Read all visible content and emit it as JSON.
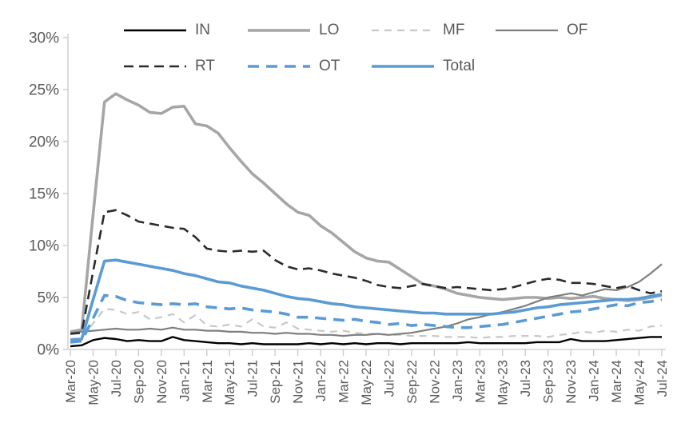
{
  "chart_data": {
    "type": "line",
    "title": "",
    "x_axis": {
      "frequency": "monthly",
      "start": "Mar-20",
      "end": "Jul-24",
      "num_points": 53,
      "tick_labels": [
        "Mar-20",
        "May-20",
        "Jul-20",
        "Sep-20",
        "Nov-20",
        "Jan-21",
        "Mar-21",
        "May-21",
        "Jul-21",
        "Sep-21",
        "Nov-21",
        "Jan-22",
        "Mar-22",
        "May-22",
        "Jul-22",
        "Sep-22",
        "Nov-22",
        "Jan-23",
        "Mar-23",
        "May-23",
        "Jul-23",
        "Sep-23",
        "Nov-23",
        "Jan-24",
        "Mar-24",
        "May-24",
        "Jul-24"
      ],
      "points_per_tick": 2
    },
    "y_axis": {
      "tick_labels": [
        "0%",
        "5%",
        "10%",
        "15%",
        "20%",
        "25%",
        "30%"
      ],
      "min": 0,
      "max": 30,
      "step": 5,
      "unit": "%"
    },
    "grid": false,
    "legend_position": "top",
    "legend_rows": [
      [
        "IN",
        "LO",
        "MF",
        "OF"
      ],
      [
        "RT",
        "OT",
        "Total"
      ]
    ],
    "colors": {
      "axis": "#C9C9C9",
      "label": "#595959",
      "background": "#FFFFFF",
      "accent_blue": "#5B9BD5"
    },
    "series": [
      {
        "name": "IN",
        "color": "#000000",
        "line_style": "solid",
        "stroke_width": 2.4,
        "dash": "",
        "values": [
          0.3,
          0.4,
          0.9,
          1.1,
          1.0,
          0.8,
          0.9,
          0.8,
          0.8,
          1.2,
          0.9,
          0.8,
          0.7,
          0.6,
          0.6,
          0.5,
          0.6,
          0.5,
          0.5,
          0.5,
          0.5,
          0.6,
          0.5,
          0.6,
          0.5,
          0.6,
          0.5,
          0.6,
          0.6,
          0.5,
          0.6,
          0.6,
          0.6,
          0.6,
          0.6,
          0.7,
          0.6,
          0.6,
          0.6,
          0.6,
          0.6,
          0.7,
          0.7,
          0.7,
          1.0,
          0.8,
          0.8,
          0.8,
          0.9,
          1.0,
          1.1,
          1.2,
          1.2
        ]
      },
      {
        "name": "LO",
        "color": "#A6A6A6",
        "line_style": "solid",
        "stroke_width": 3.6,
        "dash": "",
        "values": [
          1.7,
          1.9,
          13.0,
          23.8,
          24.6,
          24.0,
          23.5,
          22.8,
          22.7,
          23.3,
          23.4,
          21.7,
          21.5,
          20.8,
          19.4,
          18.1,
          16.9,
          16.0,
          15.0,
          14.0,
          13.2,
          12.9,
          11.9,
          11.2,
          10.3,
          9.4,
          8.8,
          8.5,
          8.4,
          7.7,
          7.0,
          6.3,
          6.1,
          5.8,
          5.4,
          5.2,
          5.0,
          4.9,
          4.8,
          4.9,
          5.0,
          5.0,
          4.9,
          5.0,
          4.9,
          5.0,
          5.1,
          4.9,
          4.8,
          4.7,
          4.8,
          5.0,
          5.2
        ]
      },
      {
        "name": "MF",
        "color": "#C8C8C8",
        "line_style": "dashed",
        "stroke_width": 2.2,
        "dash": "9 7",
        "values": [
          1.0,
          1.1,
          2.5,
          3.9,
          3.8,
          3.4,
          3.6,
          2.9,
          3.1,
          3.4,
          2.6,
          3.3,
          2.3,
          2.2,
          2.4,
          2.2,
          2.9,
          2.2,
          2.1,
          2.6,
          2.0,
          1.9,
          1.8,
          1.7,
          1.8,
          1.6,
          1.5,
          1.5,
          1.4,
          1.4,
          1.3,
          1.3,
          1.3,
          1.2,
          1.2,
          1.2,
          1.1,
          1.2,
          1.2,
          1.3,
          1.3,
          1.3,
          1.2,
          1.4,
          1.5,
          1.7,
          1.6,
          1.8,
          1.7,
          1.9,
          1.8,
          2.2,
          2.3
        ]
      },
      {
        "name": "OF",
        "color": "#7F7F7F",
        "line_style": "solid",
        "stroke_width": 2.2,
        "dash": "",
        "values": [
          1.6,
          1.7,
          1.8,
          1.9,
          2.0,
          1.9,
          1.9,
          2.0,
          1.9,
          2.1,
          1.9,
          1.9,
          1.8,
          1.8,
          1.7,
          1.7,
          1.6,
          1.6,
          1.5,
          1.6,
          1.5,
          1.5,
          1.4,
          1.4,
          1.3,
          1.4,
          1.4,
          1.5,
          1.4,
          1.5,
          1.6,
          1.8,
          2.0,
          2.2,
          2.5,
          2.9,
          3.1,
          3.4,
          3.6,
          3.9,
          4.2,
          4.6,
          5.0,
          5.2,
          5.4,
          5.2,
          5.5,
          5.8,
          5.7,
          6.0,
          6.5,
          7.3,
          8.2
        ]
      },
      {
        "name": "RT",
        "color": "#2B2B2B",
        "line_style": "dashed",
        "stroke_width": 2.6,
        "dash": "12 7",
        "values": [
          1.5,
          1.6,
          7.5,
          13.2,
          13.4,
          12.9,
          12.3,
          12.1,
          11.9,
          11.7,
          11.6,
          10.8,
          9.7,
          9.5,
          9.4,
          9.5,
          9.4,
          9.5,
          8.6,
          8.0,
          7.7,
          7.8,
          7.6,
          7.3,
          7.1,
          6.9,
          6.6,
          6.2,
          6.0,
          5.9,
          6.1,
          6.3,
          6.1,
          5.9,
          6.0,
          5.9,
          5.8,
          5.7,
          5.8,
          6.0,
          6.3,
          6.6,
          6.8,
          6.7,
          6.4,
          6.4,
          6.3,
          6.1,
          5.9,
          6.1,
          5.7,
          5.4,
          5.6
        ]
      },
      {
        "name": "OT",
        "color": "#5B9BD5",
        "line_style": "dashed",
        "stroke_width": 3.6,
        "dash": "14 9",
        "values": [
          0.7,
          0.8,
          3.0,
          5.2,
          5.1,
          4.7,
          4.5,
          4.4,
          4.3,
          4.4,
          4.3,
          4.4,
          4.1,
          4.0,
          3.9,
          4.0,
          3.8,
          3.7,
          3.6,
          3.4,
          3.1,
          3.1,
          3.0,
          2.9,
          2.8,
          2.9,
          2.7,
          2.6,
          2.4,
          2.5,
          2.3,
          2.4,
          2.3,
          2.2,
          2.1,
          2.1,
          2.2,
          2.3,
          2.4,
          2.6,
          2.8,
          3.0,
          3.2,
          3.4,
          3.6,
          3.7,
          3.9,
          4.1,
          4.3,
          4.2,
          4.5,
          4.6,
          4.8
        ]
      },
      {
        "name": "Total",
        "color": "#5B9BD5",
        "line_style": "solid",
        "stroke_width": 3.6,
        "dash": "",
        "values": [
          0.9,
          1.0,
          4.8,
          8.5,
          8.6,
          8.4,
          8.2,
          8.0,
          7.8,
          7.6,
          7.3,
          7.1,
          6.8,
          6.5,
          6.4,
          6.1,
          5.9,
          5.7,
          5.4,
          5.1,
          4.9,
          4.8,
          4.6,
          4.4,
          4.3,
          4.1,
          4.0,
          3.9,
          3.8,
          3.7,
          3.6,
          3.5,
          3.5,
          3.4,
          3.4,
          3.4,
          3.4,
          3.4,
          3.5,
          3.6,
          3.8,
          4.0,
          4.1,
          4.3,
          4.4,
          4.5,
          4.6,
          4.7,
          4.8,
          4.8,
          4.9,
          5.1,
          5.3
        ]
      }
    ]
  }
}
